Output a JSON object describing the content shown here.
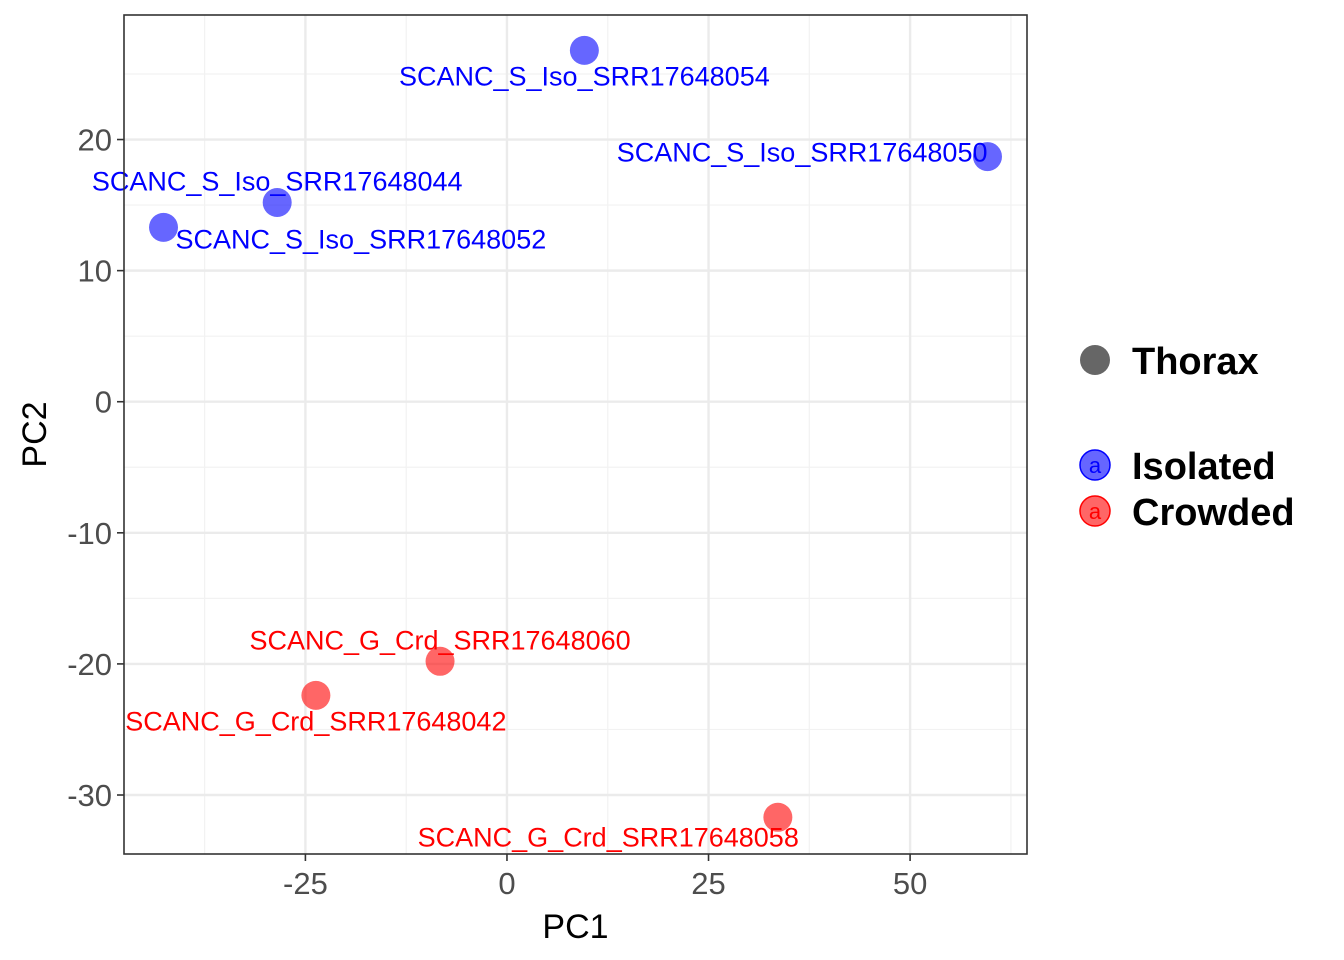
{
  "chart_data": {
    "type": "scatter",
    "title": "",
    "xlabel": "PC1",
    "ylabel": "PC2",
    "xlim": [
      -47.5,
      64.5
    ],
    "ylim": [
      -34.5,
      29.5
    ],
    "x_ticks": [
      -25,
      0,
      25,
      50
    ],
    "x_tick_labels": [
      "-25",
      "0",
      "25",
      "50"
    ],
    "y_ticks": [
      -30,
      -20,
      -10,
      0,
      10,
      20
    ],
    "y_tick_labels": [
      "-30",
      "-20",
      "-10",
      "0",
      "10",
      "20"
    ],
    "grid": true,
    "legend_position": "right",
    "shape_legend": {
      "label": "Thorax",
      "color": "#666666"
    },
    "series": [
      {
        "name": "Isolated",
        "color": "#0000ff",
        "points": [
          {
            "label": "SCANC_S_Iso_SRR17648054",
            "x": 9.6,
            "y": 26.8,
            "label_side": "below"
          },
          {
            "label": "SCANC_S_Iso_SRR17648050",
            "x": 59.6,
            "y": 18.7,
            "label_side": "left"
          },
          {
            "label": "SCANC_S_Iso_SRR17648044",
            "x": -28.5,
            "y": 15.2,
            "label_side": "above"
          },
          {
            "label": "SCANC_S_Iso_SRR17648052",
            "x": -42.6,
            "y": 13.3,
            "label_side": "below-right"
          }
        ]
      },
      {
        "name": "Crowded",
        "color": "#ff0000",
        "points": [
          {
            "label": "SCANC_G_Crd_SRR17648060",
            "x": -8.3,
            "y": -19.8,
            "label_side": "above"
          },
          {
            "label": "SCANC_G_Crd_SRR17648042",
            "x": -23.7,
            "y": -22.4,
            "label_side": "below"
          },
          {
            "label": "SCANC_G_Crd_SRR17648058",
            "x": 33.6,
            "y": -31.7,
            "label_side": "below-left"
          }
        ]
      }
    ],
    "legend_key_letter": "a"
  }
}
